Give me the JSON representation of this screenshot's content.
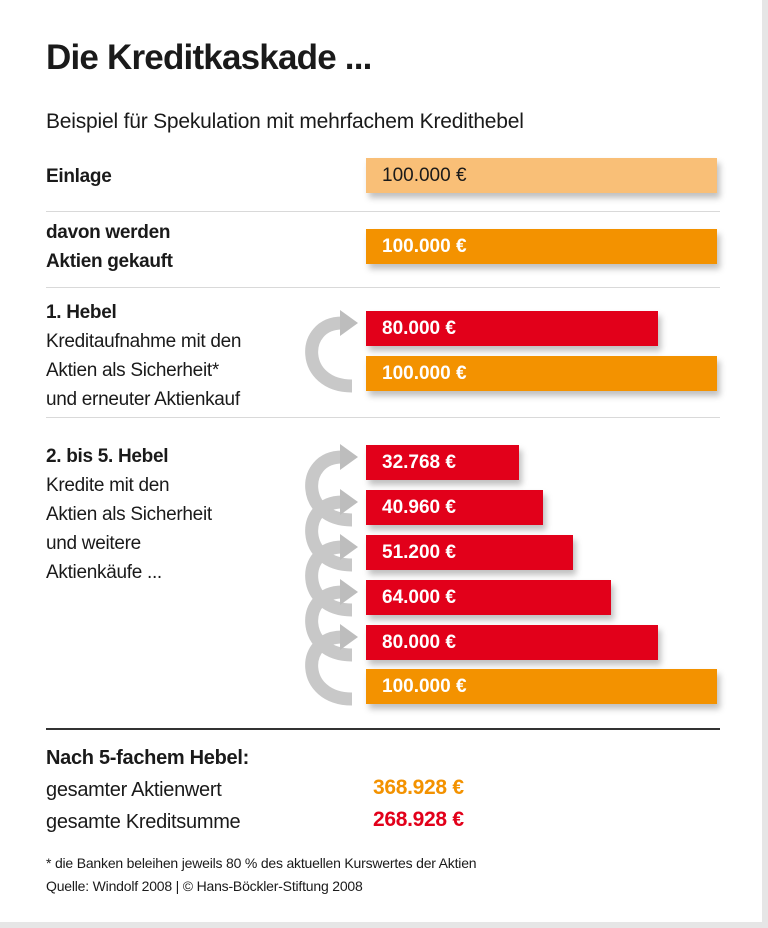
{
  "chart_data": {
    "type": "bar",
    "title": "Die Kreditkaskade ...",
    "subtitle": "Beispiel für Spekulation mit mehrfachem Kredithebel",
    "orientation": "horizontal",
    "unit": "€",
    "groups": [
      {
        "label_bold": "Einlage",
        "label": "",
        "bars": [
          {
            "value": 100000,
            "text": "100.000 €",
            "kind": "einlage"
          }
        ]
      },
      {
        "label_bold": "davon werden\nAktien gekauft",
        "label": "",
        "bars": [
          {
            "value": 100000,
            "text": "100.000 €",
            "kind": "aktien"
          }
        ]
      },
      {
        "label_bold": "1. Hebel",
        "label": "Kreditaufnahme mit den\nAktien als Sicherheit*\nund erneuter Aktienkauf",
        "bars": [
          {
            "value": 80000,
            "text": "80.000 €",
            "kind": "kredit"
          },
          {
            "value": 100000,
            "text": "100.000 €",
            "kind": "aktien"
          }
        ]
      },
      {
        "label_bold": "2. bis 5. Hebel",
        "label": "Kredite mit den\nAktien als Sicherheit\nund weitere\nAktienkäufe ...",
        "bars": [
          {
            "value": 32768,
            "text": "32.768 €",
            "kind": "kredit"
          },
          {
            "value": 40960,
            "text": "40.960 €",
            "kind": "kredit"
          },
          {
            "value": 51200,
            "text": "51.200 €",
            "kind": "kredit"
          },
          {
            "value": 64000,
            "text": "64.000 €",
            "kind": "kredit"
          },
          {
            "value": 80000,
            "text": "80.000 €",
            "kind": "kredit"
          },
          {
            "value": 100000,
            "text": "100.000 €",
            "kind": "aktien"
          }
        ]
      }
    ],
    "colors": {
      "einlage": "#f9bf77",
      "aktien": "#f39200",
      "kredit": "#e2001a",
      "arrow": "#c8c8c8"
    }
  },
  "summary": {
    "heading": "Nach 5-fachem Hebel:",
    "rows": [
      {
        "label": "gesamter Aktienwert",
        "value": "368.928 €",
        "color": "#f39200"
      },
      {
        "label": "gesamte Kreditsumme",
        "value": "268.928 €",
        "color": "#e2001a"
      }
    ]
  },
  "footnote": "* die Banken beleihen jeweils 80 % des aktuellen Kurswertes der Aktien",
  "source": "Quelle: Windolf 2008 | © Hans-Böckler-Stiftung 2008"
}
